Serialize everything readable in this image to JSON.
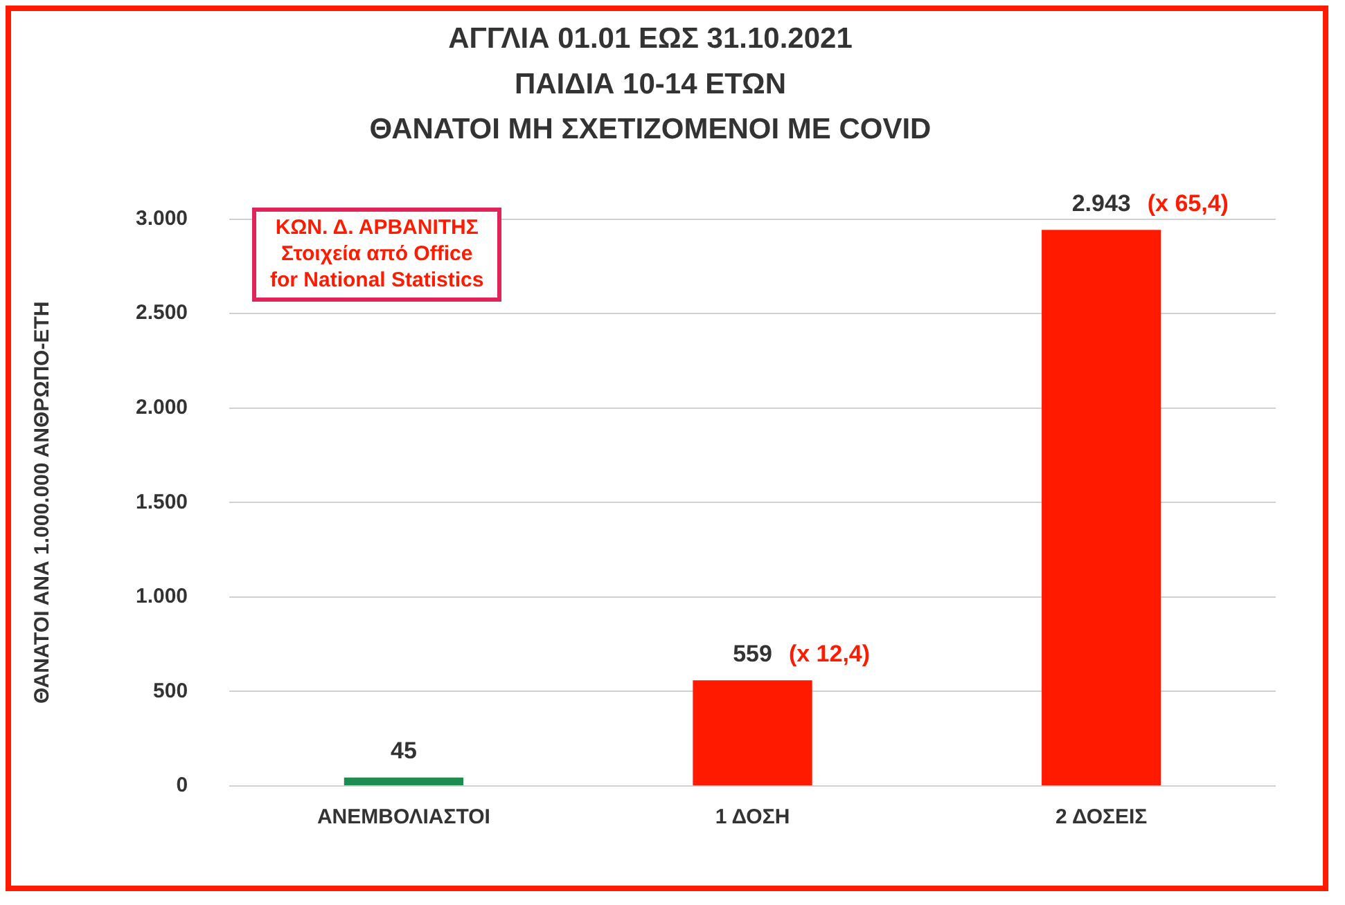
{
  "chart_data": {
    "type": "bar",
    "title": "ΑΓΓΛΙΑ 01.01 ΕΩΣ 31.10.2021",
    "subtitle": "ΠΑΙΔΙΑ 10-14 ΕΤΩΝ\nΘΑΝΑΤΟΙ ΜΗ ΣΧΕΤΙΖΟΜΕΝΟΙ ΜΕ COVID",
    "ylabel": "ΘΑΝΑΤΟΙ ΑΝΑ 1.000.000 ΑΝΘΡΩΠΟ-ΕΤΗ",
    "categories": [
      "ΑΝΕΜΒΟΛΙΑΣΤΟΙ",
      "1 ΔΟΣΗ",
      "2 ΔΟΣΕΙΣ"
    ],
    "values": [
      45,
      559,
      2943
    ],
    "colors": [
      "#1e8c4e",
      "#ff1a00",
      "#ff1a00"
    ],
    "value_labels": [
      "45",
      "559",
      "2.943"
    ],
    "ylim": [
      0,
      3000
    ],
    "yticks": [
      0,
      {
        "value": 500,
        "label": "500"
      },
      {
        "value": 1000,
        "label": "1.000"
      },
      {
        "value": 1500,
        "label": "1.500"
      },
      {
        "value": 2000,
        "label": "2.000"
      },
      {
        "value": 2500,
        "label": "2.500"
      },
      {
        "value": 3000,
        "label": "3.000"
      }
    ],
    "grid": "y",
    "annotations": [
      "ΚΩΝ. Δ. ΑΡΒΑΝΙΤΗΣ\nΣτοιχεία από Office\nfor National Statistics",
      {
        "text": "(x 12,4)",
        "x": "1 ΔΟΣΗ",
        "y": 559
      },
      {
        "text": "(x 65,4)",
        "x": "2 ΔΟΣΕΙΣ",
        "y": 2943
      }
    ]
  }
}
